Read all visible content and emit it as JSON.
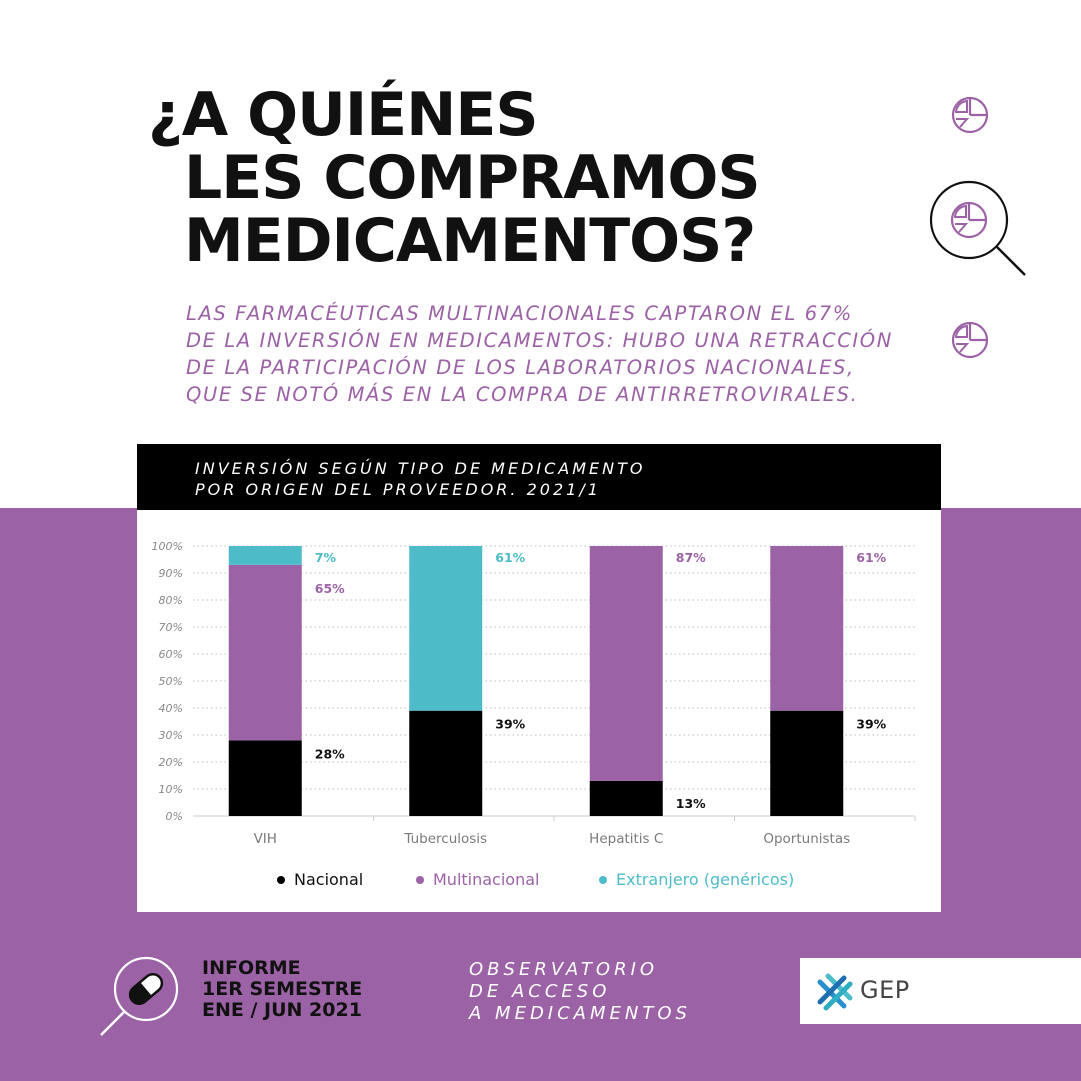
{
  "title": {
    "line1": "¿A quiénes",
    "line2": "les compramos",
    "line3": "medicamentos?"
  },
  "subtitle": {
    "line1": "LAS FARMACÉUTICAS MULTINACIONALES CAPTARON EL 67%",
    "line2": "DE LA INVERSIÓN EN MEDICAMENTOS: HUBO UNA RETRACCIÓN",
    "line3": "DE LA PARTICIPACIÓN DE LOS LABORATORIOS NACIONALES,",
    "line4": "QUE SE NOTÓ MÁS EN LA COMPRA DE ANTIRRETROVIRALES."
  },
  "chart_header": {
    "line1": "INVERSIÓN SEGÚN TIPO DE MEDICAMENTO",
    "line2": "POR ORIGEN DEL PROVEEDOR.  2021/1"
  },
  "chart_data": {
    "type": "bar",
    "stacked": true,
    "categories": [
      "VIH",
      "Tuberculosis",
      "Hepatitis C",
      "Oportunistas"
    ],
    "series": [
      {
        "name": "Nacional",
        "color": "#000000",
        "values": [
          28,
          39,
          13,
          39
        ],
        "labels": [
          "28%",
          "39%",
          "13%",
          "39%"
        ]
      },
      {
        "name": "Multinacional",
        "color": "#9c62a6",
        "values": [
          65,
          0,
          87,
          61
        ],
        "labels": [
          "65%",
          "",
          "87%",
          "61%"
        ]
      },
      {
        "name": "Extranjero (genéricos)",
        "color": "#4dbcc8",
        "values": [
          7,
          61,
          0,
          0
        ],
        "labels": [
          "7%",
          "61%",
          "",
          ""
        ]
      }
    ],
    "yticks": [
      "0%",
      "10%",
      "20%",
      "30%",
      "40%",
      "50%",
      "60%",
      "70%",
      "80%",
      "90%",
      "100%"
    ],
    "ylim": [
      0,
      100
    ],
    "grid": true,
    "legend_position": "bottom"
  },
  "footer": {
    "report_line1": "INFORME",
    "report_line2": "1ER SEMESTRE",
    "report_line3": "ENE / JUN 2021",
    "obs_line1": "OBSERVATORIO",
    "obs_line2": "DE ACCESO",
    "obs_line3": "A MEDICAMENTOS",
    "logo_text": "GEP"
  },
  "icons": {
    "pie_chart": "pie-chart-icon",
    "magnifier": "magnifying-glass-icon",
    "pill": "pill-icon",
    "logo": "gep-logo-icon"
  },
  "colors": {
    "purple": "#9c62a6",
    "teal": "#4dbcc8",
    "black": "#000000",
    "logo_blue": "#3a7fc0"
  }
}
